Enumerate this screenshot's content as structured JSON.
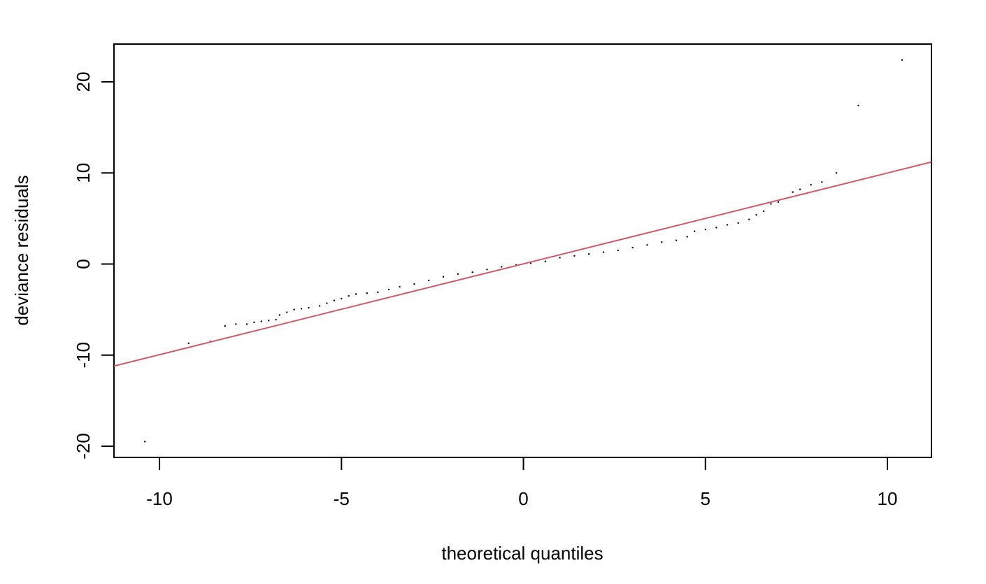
{
  "chart_data": {
    "type": "scatter",
    "x_label": "theoretical quantiles",
    "y_label": "deviance residuals",
    "xlim": [
      -11.25,
      11.21
    ],
    "ylim": [
      -21.23,
      24.15
    ],
    "xticks": [
      -10,
      -5,
      0,
      5,
      10
    ],
    "yticks": [
      -20,
      -10,
      0,
      10,
      20
    ],
    "series": [
      {
        "color": "#000000",
        "x": [
          -10.4,
          -9.2,
          -8.6,
          -8.2,
          -7.9,
          -7.6,
          -7.4,
          -7.2,
          -7.0,
          -6.8,
          -6.7,
          -6.5,
          -6.3,
          -6.1,
          -5.9,
          -5.6,
          -5.4,
          -5.2,
          -5.0,
          -4.8,
          -4.6,
          -4.3,
          -4.0,
          -3.7,
          -3.4,
          -3.0,
          -2.6,
          -2.2,
          -1.8,
          -1.4,
          -1.0,
          -0.6,
          -0.2,
          0.2,
          0.6,
          1.0,
          1.4,
          1.8,
          2.2,
          2.6,
          3.0,
          3.4,
          3.8,
          4.2,
          4.5,
          4.7,
          5.0,
          5.3,
          5.6,
          5.9,
          6.2,
          6.4,
          6.6,
          6.8,
          7.0,
          7.4,
          7.6,
          7.9,
          8.2,
          8.6,
          9.2,
          10.4
        ],
        "values": [
          -19.5,
          -8.7,
          -8.5,
          -6.8,
          -6.6,
          -6.6,
          -6.4,
          -6.3,
          -6.2,
          -6.1,
          -5.6,
          -5.3,
          -5.0,
          -4.9,
          -4.8,
          -4.6,
          -4.3,
          -4.0,
          -3.8,
          -3.5,
          -3.3,
          -3.2,
          -3.1,
          -2.8,
          -2.5,
          -2.2,
          -1.8,
          -1.4,
          -1.1,
          -0.9,
          -0.6,
          -0.3,
          -0.1,
          0.1,
          0.3,
          0.7,
          0.9,
          1.1,
          1.3,
          1.5,
          1.8,
          2.1,
          2.4,
          2.6,
          3.0,
          3.6,
          3.8,
          4.0,
          4.3,
          4.5,
          4.9,
          5.4,
          5.8,
          6.6,
          6.8,
          7.9,
          8.2,
          8.7,
          9.0,
          10.0,
          17.4,
          22.4
        ]
      },
      {
        "type": "line",
        "color": "#cd5c6a",
        "x": [
          -11.25,
          11.21
        ],
        "values": [
          -11.2,
          11.2
        ]
      }
    ]
  }
}
